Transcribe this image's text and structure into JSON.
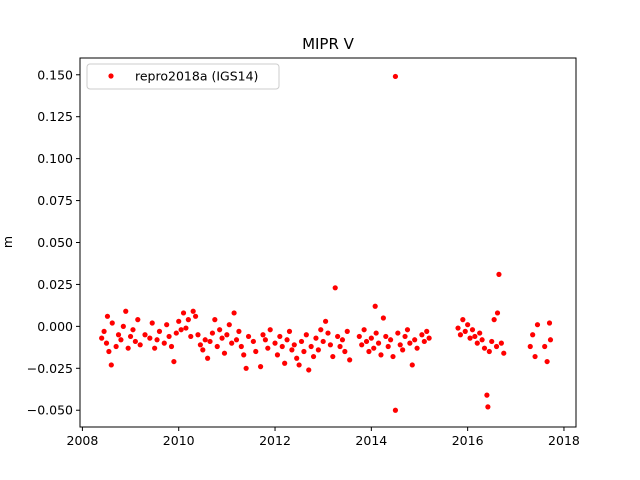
{
  "chart_data": {
    "type": "scatter",
    "title": "MIPR V",
    "xlabel": "",
    "ylabel": "m",
    "xlim": [
      2007.95,
      2018.25
    ],
    "ylim": [
      -0.06,
      0.16
    ],
    "xticks": [
      "2008",
      "2010",
      "2012",
      "2014",
      "2016",
      "2018"
    ],
    "yticks": [
      "−0.050",
      "−0.025",
      "0.000",
      "0.025",
      "0.050",
      "0.075",
      "0.100",
      "0.125",
      "0.150"
    ],
    "legend": {
      "position": "top-left",
      "entries": [
        "repro2018a (IGS14)"
      ]
    },
    "grid": false,
    "color": "#ff0000",
    "series": [
      {
        "name": "repro2018a (IGS14)",
        "points": [
          [
            2008.4,
            -0.007
          ],
          [
            2008.45,
            -0.003
          ],
          [
            2008.5,
            -0.01
          ],
          [
            2008.52,
            0.006
          ],
          [
            2008.55,
            -0.015
          ],
          [
            2008.6,
            -0.023
          ],
          [
            2008.62,
            0.002
          ],
          [
            2008.7,
            -0.012
          ],
          [
            2008.75,
            -0.005
          ],
          [
            2008.8,
            -0.008
          ],
          [
            2008.85,
            0.0
          ],
          [
            2008.9,
            0.009
          ],
          [
            2008.95,
            -0.013
          ],
          [
            2009.0,
            -0.006
          ],
          [
            2009.05,
            -0.002
          ],
          [
            2009.1,
            -0.009
          ],
          [
            2009.15,
            0.004
          ],
          [
            2009.2,
            -0.011
          ],
          [
            2009.3,
            -0.005
          ],
          [
            2009.4,
            -0.007
          ],
          [
            2009.45,
            0.002
          ],
          [
            2009.5,
            -0.013
          ],
          [
            2009.55,
            -0.008
          ],
          [
            2009.6,
            -0.003
          ],
          [
            2009.7,
            -0.01
          ],
          [
            2009.75,
            0.001
          ],
          [
            2009.8,
            -0.006
          ],
          [
            2009.85,
            -0.012
          ],
          [
            2009.9,
            -0.021
          ],
          [
            2009.95,
            -0.004
          ],
          [
            2010.0,
            0.003
          ],
          [
            2010.05,
            -0.002
          ],
          [
            2010.1,
            0.008
          ],
          [
            2010.15,
            -0.001
          ],
          [
            2010.2,
            0.004
          ],
          [
            2010.25,
            -0.006
          ],
          [
            2010.3,
            0.009
          ],
          [
            2010.35,
            0.006
          ],
          [
            2010.4,
            -0.005
          ],
          [
            2010.45,
            -0.011
          ],
          [
            2010.5,
            -0.014
          ],
          [
            2010.55,
            -0.008
          ],
          [
            2010.6,
            -0.019
          ],
          [
            2010.65,
            -0.009
          ],
          [
            2010.7,
            -0.004
          ],
          [
            2010.75,
            0.004
          ],
          [
            2010.8,
            -0.012
          ],
          [
            2010.85,
            -0.002
          ],
          [
            2010.9,
            -0.007
          ],
          [
            2010.95,
            -0.016
          ],
          [
            2011.0,
            -0.005
          ],
          [
            2011.05,
            0.001
          ],
          [
            2011.1,
            -0.01
          ],
          [
            2011.15,
            0.008
          ],
          [
            2011.2,
            -0.008
          ],
          [
            2011.25,
            -0.003
          ],
          [
            2011.3,
            -0.012
          ],
          [
            2011.35,
            -0.017
          ],
          [
            2011.4,
            -0.025
          ],
          [
            2011.45,
            -0.006
          ],
          [
            2011.55,
            -0.009
          ],
          [
            2011.6,
            -0.015
          ],
          [
            2011.7,
            -0.024
          ],
          [
            2011.75,
            -0.005
          ],
          [
            2011.8,
            -0.008
          ],
          [
            2011.85,
            -0.013
          ],
          [
            2011.9,
            -0.002
          ],
          [
            2012.0,
            -0.01
          ],
          [
            2012.05,
            -0.017
          ],
          [
            2012.1,
            -0.006
          ],
          [
            2012.15,
            -0.012
          ],
          [
            2012.2,
            -0.022
          ],
          [
            2012.25,
            -0.008
          ],
          [
            2012.3,
            -0.003
          ],
          [
            2012.35,
            -0.014
          ],
          [
            2012.4,
            -0.011
          ],
          [
            2012.45,
            -0.019
          ],
          [
            2012.5,
            -0.023
          ],
          [
            2012.55,
            -0.009
          ],
          [
            2012.6,
            -0.015
          ],
          [
            2012.65,
            -0.005
          ],
          [
            2012.7,
            -0.026
          ],
          [
            2012.75,
            -0.012
          ],
          [
            2012.8,
            -0.018
          ],
          [
            2012.85,
            -0.007
          ],
          [
            2012.9,
            -0.014
          ],
          [
            2012.95,
            -0.002
          ],
          [
            2013.0,
            -0.009
          ],
          [
            2013.05,
            0.003
          ],
          [
            2013.1,
            -0.004
          ],
          [
            2013.15,
            -0.011
          ],
          [
            2013.2,
            -0.018
          ],
          [
            2013.25,
            0.023
          ],
          [
            2013.3,
            -0.006
          ],
          [
            2013.35,
            -0.012
          ],
          [
            2013.4,
            -0.008
          ],
          [
            2013.45,
            -0.015
          ],
          [
            2013.5,
            -0.003
          ],
          [
            2013.55,
            -0.02
          ],
          [
            2013.75,
            -0.006
          ],
          [
            2013.8,
            -0.011
          ],
          [
            2013.85,
            -0.002
          ],
          [
            2013.9,
            -0.009
          ],
          [
            2013.95,
            -0.015
          ],
          [
            2014.0,
            -0.007
          ],
          [
            2014.05,
            -0.013
          ],
          [
            2014.08,
            0.012
          ],
          [
            2014.1,
            -0.004
          ],
          [
            2014.15,
            -0.01
          ],
          [
            2014.2,
            -0.017
          ],
          [
            2014.25,
            0.005
          ],
          [
            2014.3,
            -0.006
          ],
          [
            2014.35,
            -0.012
          ],
          [
            2014.4,
            -0.008
          ],
          [
            2014.45,
            -0.018
          ],
          [
            2014.5,
            0.149
          ],
          [
            2014.5,
            -0.05
          ],
          [
            2014.55,
            -0.004
          ],
          [
            2014.6,
            -0.011
          ],
          [
            2014.65,
            -0.014
          ],
          [
            2014.7,
            -0.006
          ],
          [
            2014.75,
            -0.002
          ],
          [
            2014.8,
            -0.01
          ],
          [
            2014.85,
            -0.023
          ],
          [
            2014.9,
            -0.008
          ],
          [
            2014.95,
            -0.013
          ],
          [
            2015.05,
            -0.005
          ],
          [
            2015.1,
            -0.009
          ],
          [
            2015.15,
            -0.003
          ],
          [
            2015.2,
            -0.007
          ],
          [
            2015.8,
            -0.001
          ],
          [
            2015.85,
            -0.005
          ],
          [
            2015.9,
            0.004
          ],
          [
            2015.95,
            -0.003
          ],
          [
            2016.0,
            0.001
          ],
          [
            2016.05,
            -0.007
          ],
          [
            2016.1,
            -0.002
          ],
          [
            2016.15,
            -0.006
          ],
          [
            2016.2,
            -0.01
          ],
          [
            2016.25,
            -0.004
          ],
          [
            2016.3,
            -0.008
          ],
          [
            2016.35,
            -0.013
          ],
          [
            2016.4,
            -0.041
          ],
          [
            2016.42,
            -0.048
          ],
          [
            2016.45,
            -0.015
          ],
          [
            2016.5,
            -0.009
          ],
          [
            2016.55,
            0.004
          ],
          [
            2016.6,
            -0.012
          ],
          [
            2016.62,
            0.008
          ],
          [
            2016.65,
            0.031
          ],
          [
            2016.7,
            -0.01
          ],
          [
            2016.75,
            -0.016
          ],
          [
            2017.3,
            -0.012
          ],
          [
            2017.35,
            -0.005
          ],
          [
            2017.4,
            -0.018
          ],
          [
            2017.45,
            0.001
          ],
          [
            2017.6,
            -0.012
          ],
          [
            2017.65,
            -0.021
          ],
          [
            2017.7,
            0.002
          ],
          [
            2017.72,
            -0.008
          ]
        ]
      }
    ]
  }
}
